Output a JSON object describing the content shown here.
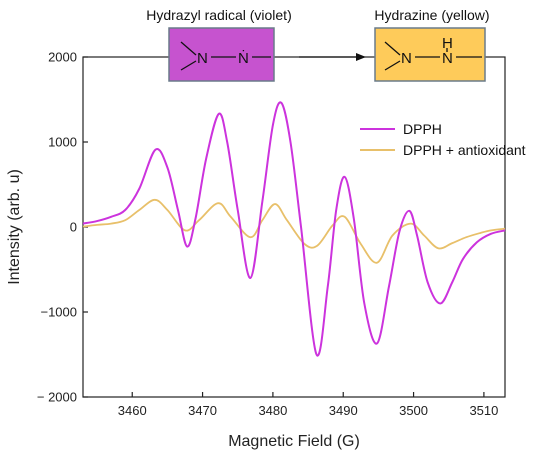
{
  "chart_data": {
    "type": "line",
    "xlabel": "Magnetic Field (G)",
    "ylabel": "Intensity (arb. u)",
    "xlim": [
      3453,
      3513
    ],
    "ylim": [
      -2000,
      2000
    ],
    "x_ticks": [
      3460,
      3470,
      3480,
      3490,
      3500,
      3510
    ],
    "y_ticks": [
      -2000,
      -1000,
      0,
      1000,
      2000
    ],
    "y_tick_labels": [
      "− 2000",
      "−1000",
      "0",
      "1000",
      "2000"
    ],
    "legend_position": "right",
    "grid": false,
    "series": [
      {
        "name": "DPPH",
        "color": "#cc33dd",
        "points": [
          [
            3453,
            40
          ],
          [
            3455,
            70
          ],
          [
            3457,
            120
          ],
          [
            3459,
            200
          ],
          [
            3461,
            450
          ],
          [
            3463.3,
            910
          ],
          [
            3465,
            700
          ],
          [
            3466.5,
            200
          ],
          [
            3467.8,
            -230
          ],
          [
            3469,
            100
          ],
          [
            3470.5,
            800
          ],
          [
            3472.3,
            1330
          ],
          [
            3473.5,
            1000
          ],
          [
            3475,
            200
          ],
          [
            3476.8,
            -600
          ],
          [
            3478.5,
            300
          ],
          [
            3480,
            1200
          ],
          [
            3481.2,
            1460
          ],
          [
            3482.5,
            1000
          ],
          [
            3484,
            0
          ],
          [
            3486.2,
            -1500
          ],
          [
            3487.8,
            -700
          ],
          [
            3489,
            200
          ],
          [
            3490.2,
            590
          ],
          [
            3491.5,
            100
          ],
          [
            3493,
            -900
          ],
          [
            3494.8,
            -1370
          ],
          [
            3496.5,
            -700
          ],
          [
            3498,
            -50
          ],
          [
            3499.4,
            190
          ],
          [
            3500.5,
            -100
          ],
          [
            3502,
            -650
          ],
          [
            3503.8,
            -900
          ],
          [
            3505.5,
            -650
          ],
          [
            3507,
            -380
          ],
          [
            3509,
            -180
          ],
          [
            3511,
            -80
          ],
          [
            3513,
            -40
          ]
        ]
      },
      {
        "name": "DPPH + antioxidant",
        "color": "#e8c06a",
        "points": [
          [
            3453,
            5
          ],
          [
            3455,
            25
          ],
          [
            3457,
            40
          ],
          [
            3459,
            80
          ],
          [
            3461,
            200
          ],
          [
            3463.2,
            320
          ],
          [
            3465,
            200
          ],
          [
            3467.5,
            -40
          ],
          [
            3469.5,
            80
          ],
          [
            3472.2,
            280
          ],
          [
            3474,
            120
          ],
          [
            3476.8,
            -120
          ],
          [
            3478.5,
            80
          ],
          [
            3480.3,
            270
          ],
          [
            3482,
            80
          ],
          [
            3484.5,
            -200
          ],
          [
            3486.3,
            -220
          ],
          [
            3488.5,
            20
          ],
          [
            3490.2,
            120
          ],
          [
            3492.5,
            -200
          ],
          [
            3494.8,
            -420
          ],
          [
            3497,
            -100
          ],
          [
            3499.6,
            40
          ],
          [
            3501.5,
            -100
          ],
          [
            3503.5,
            -250
          ],
          [
            3505.5,
            -190
          ],
          [
            3507.5,
            -120
          ],
          [
            3509.5,
            -70
          ],
          [
            3511,
            -40
          ],
          [
            3513,
            -20
          ]
        ]
      }
    ]
  },
  "inset": {
    "left_title": "Hydrazyl radical (violet)",
    "right_title": "Hydrazine (yellow)",
    "left_color": "#c653cf",
    "right_color": "#fecb5a",
    "left_atoms": [
      "N",
      "Ṅ"
    ],
    "right_atoms": [
      "N",
      "N",
      "H"
    ]
  }
}
